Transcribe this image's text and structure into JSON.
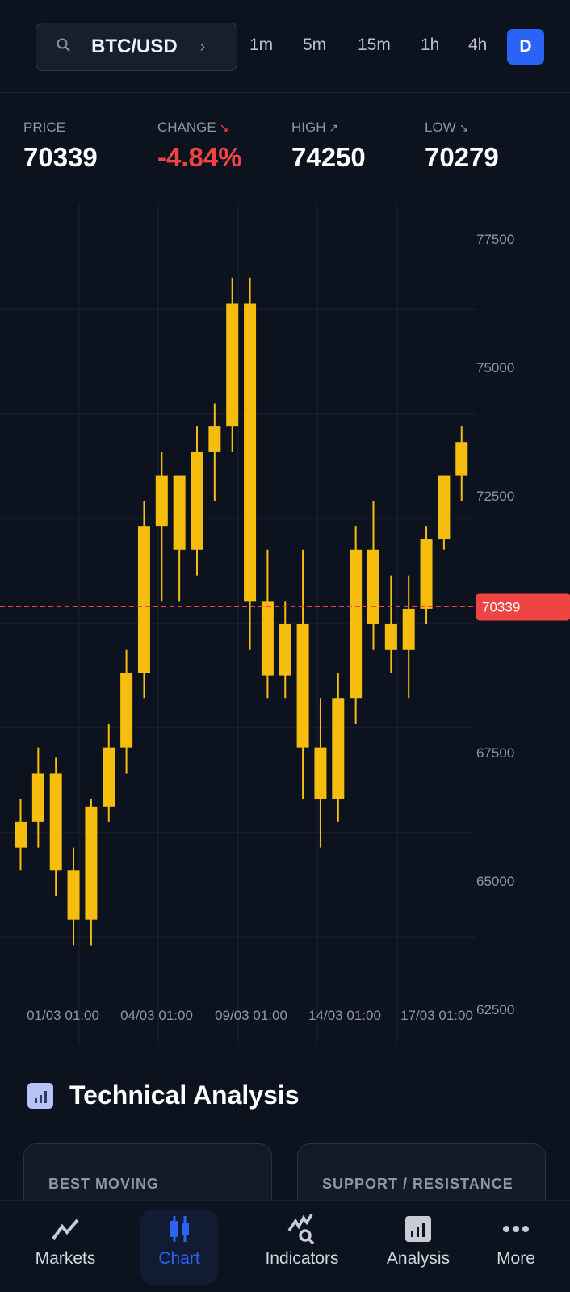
{
  "header": {
    "symbol": "BTC/USD",
    "search_icon": "search-icon",
    "chevron_icon": "chevron-right-icon",
    "timeframes": [
      {
        "label": "1m"
      },
      {
        "label": "5m"
      },
      {
        "label": "15m"
      },
      {
        "label": "1h"
      },
      {
        "label": "4h"
      },
      {
        "label": "D",
        "active": true
      }
    ]
  },
  "stats": [
    {
      "label": "PRICE",
      "value": "70339",
      "arrow": ""
    },
    {
      "label": "CHANGE",
      "value": "-4.84%",
      "arrow": "↘",
      "color": "#ef4444"
    },
    {
      "label": "HIGH",
      "value": "74250",
      "arrow": "↗"
    },
    {
      "label": "LOW",
      "value": "70279",
      "arrow": "↘"
    }
  ],
  "chart_data": {
    "type": "candlestick",
    "candle_color": "#f5bd0e",
    "ohlc": [
      [
        65650,
        66600,
        65200,
        66150
      ],
      [
        66150,
        67600,
        65650,
        67100
      ],
      [
        67100,
        67400,
        64700,
        65200
      ],
      [
        65200,
        65650,
        63750,
        64250
      ],
      [
        64250,
        66600,
        63750,
        66450
      ],
      [
        66450,
        68050,
        66150,
        67600
      ],
      [
        67600,
        69500,
        67100,
        69050
      ],
      [
        69050,
        72400,
        68550,
        71900
      ],
      [
        71900,
        73350,
        70450,
        72900
      ],
      [
        72900,
        72900,
        70450,
        71450
      ],
      [
        71450,
        73850,
        70950,
        73350
      ],
      [
        73350,
        74300,
        72400,
        73850
      ],
      [
        73850,
        76750,
        73350,
        76250
      ],
      [
        76250,
        76750,
        69500,
        70450
      ],
      [
        70450,
        71450,
        68550,
        69000
      ],
      [
        69000,
        70450,
        68550,
        70000
      ],
      [
        70000,
        71450,
        66600,
        67600
      ],
      [
        67600,
        68550,
        65650,
        66600
      ],
      [
        66600,
        69050,
        66150,
        68550
      ],
      [
        68550,
        71900,
        68050,
        71450
      ],
      [
        71450,
        72400,
        69500,
        70000
      ],
      [
        70000,
        70950,
        69050,
        69500
      ],
      [
        69500,
        70950,
        68550,
        70300
      ],
      [
        70300,
        71900,
        70000,
        71650
      ],
      [
        71650,
        72900,
        71450,
        72900
      ],
      [
        72900,
        73850,
        72400,
        73550
      ]
    ],
    "ylim": [
      62500,
      77500
    ],
    "y_ticks": [
      "77500",
      "75000",
      "72500",
      "67500",
      "65000",
      "62500"
    ],
    "x_ticks": [
      "01/03 01:00",
      "04/03 01:00",
      "09/03 01:00",
      "14/03 01:00",
      "17/03 01:00"
    ],
    "current_price": 70339,
    "current_price_label": "70339",
    "current_price_color": "#ef4444",
    "grid": true
  },
  "analysis": {
    "title": "Technical Analysis",
    "cards": [
      "BEST MOVING AVERAGES",
      "SUPPORT / RESISTANCE"
    ]
  },
  "nav": [
    {
      "label": "Markets",
      "icon": "trend-line-icon"
    },
    {
      "label": "Chart",
      "icon": "candlestick-icon",
      "active": true
    },
    {
      "label": "Indicators",
      "icon": "indicators-search-icon"
    },
    {
      "label": "Analysis",
      "icon": "bar-chart-icon"
    },
    {
      "label": "More",
      "icon": "more-dots-icon"
    }
  ]
}
